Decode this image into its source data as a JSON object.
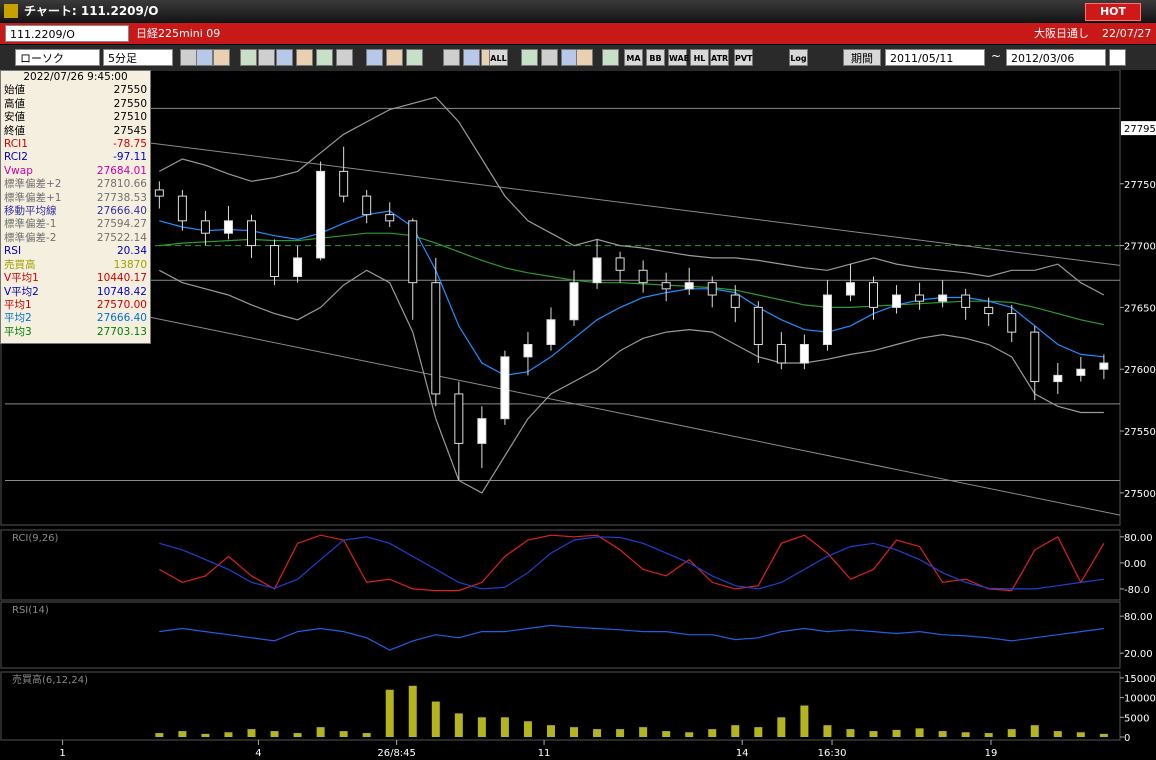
{
  "window": {
    "title": "チャート: 111.2209/O",
    "hot": "HOT"
  },
  "toolbar": {
    "symbol": "111.2209/O",
    "name": "日経225mini 09",
    "market": "大阪日通し",
    "date": "22/07/27",
    "chart_style": "ローソク",
    "interval": "5分足",
    "buttons": [
      "ALL",
      "MA",
      "BB",
      "WAE",
      "HL",
      "ATR",
      "PVT",
      "Log"
    ],
    "period": "期間",
    "from": "2011/05/11",
    "tilde": "~",
    "to": "2012/03/06"
  },
  "info_panel": {
    "datetime": "2022/07/26 9:45:00",
    "rows": [
      {
        "label": "始値",
        "value": "27550",
        "color": "#000000"
      },
      {
        "label": "高値",
        "value": "27550",
        "color": "#000000"
      },
      {
        "label": "安値",
        "value": "27510",
        "color": "#000000"
      },
      {
        "label": "終値",
        "value": "27545",
        "color": "#000000"
      },
      {
        "label": "RCI1",
        "value": "-78.75",
        "color": "#d00000"
      },
      {
        "label": "RCI2",
        "value": "-97.11",
        "color": "#0000c0"
      },
      {
        "label": "Vwap",
        "value": "27684.01",
        "color": "#d000a0"
      },
      {
        "label": "標準偏差+2",
        "value": "27810.66",
        "color": "#707070"
      },
      {
        "label": "標準偏差+1",
        "value": "27738.53",
        "color": "#707070"
      },
      {
        "label": "移動平均線",
        "value": "27666.40",
        "color": "#3030a0"
      },
      {
        "label": "標準偏差-1",
        "value": "27594.27",
        "color": "#707070"
      },
      {
        "label": "標準偏差-2",
        "value": "27522.14",
        "color": "#707070"
      },
      {
        "label": "RSI",
        "value": "20.34",
        "color": "#0000c0"
      },
      {
        "label": "売買高",
        "value": "13870",
        "color": "#a0a000"
      },
      {
        "label": "V平均1",
        "value": "10440.17",
        "color": "#d00000"
      },
      {
        "label": "V平均2",
        "value": "10748.42",
        "color": "#0000c0"
      },
      {
        "label": "平均1",
        "value": "27570.00",
        "color": "#d00000"
      },
      {
        "label": "平均2",
        "value": "27666.40",
        "color": "#0070d0"
      },
      {
        "label": "平均3",
        "value": "27703.13",
        "color": "#008000"
      }
    ]
  },
  "chart_data": [
    {
      "type": "candlestick",
      "x": [
        0,
        1,
        2,
        3,
        4,
        5,
        6,
        7,
        8,
        9,
        10,
        11,
        12,
        13,
        14,
        15,
        16,
        17,
        18,
        19,
        20,
        21,
        22,
        23,
        24,
        25,
        26,
        27,
        28,
        29,
        30,
        31,
        32,
        33,
        34,
        35,
        36,
        37,
        38,
        39,
        40,
        41
      ],
      "open": [
        27745,
        27740,
        27720,
        27710,
        27720,
        27700,
        27675,
        27690,
        27760,
        27740,
        27725,
        27720,
        27670,
        27580,
        27540,
        27560,
        27610,
        27620,
        27640,
        27670,
        27690,
        27680,
        27670,
        27665,
        27670,
        27660,
        27650,
        27620,
        27605,
        27620,
        27660,
        27670,
        27650,
        27660,
        27655,
        27660,
        27650,
        27645,
        27630,
        27590,
        27595,
        27600
      ],
      "high": [
        27752,
        27745,
        27728,
        27732,
        27725,
        27705,
        27700,
        27768,
        27780,
        27745,
        27735,
        27722,
        27690,
        27590,
        27570,
        27615,
        27630,
        27650,
        27680,
        27705,
        27695,
        27688,
        27678,
        27682,
        27675,
        27668,
        27655,
        27630,
        27628,
        27672,
        27685,
        27675,
        27668,
        27670,
        27672,
        27665,
        27658,
        27652,
        27635,
        27605,
        27610,
        27612
      ],
      "low": [
        27730,
        27712,
        27700,
        27705,
        27690,
        27668,
        27670,
        27688,
        27735,
        27718,
        27715,
        27640,
        27570,
        27510,
        27520,
        27555,
        27595,
        27615,
        27635,
        27665,
        27670,
        27662,
        27655,
        27660,
        27650,
        27638,
        27605,
        27600,
        27600,
        27615,
        27655,
        27640,
        27645,
        27648,
        27650,
        27640,
        27635,
        27622,
        27575,
        27580,
        27590,
        27592
      ],
      "close": [
        27740,
        27720,
        27710,
        27720,
        27700,
        27675,
        27690,
        27760,
        27740,
        27725,
        27720,
        27670,
        27580,
        27540,
        27560,
        27610,
        27620,
        27640,
        27670,
        27690,
        27680,
        27670,
        27665,
        27670,
        27660,
        27650,
        27620,
        27605,
        27620,
        27660,
        27670,
        27650,
        27660,
        27655,
        27660,
        27650,
        27645,
        27630,
        27590,
        27595,
        27600,
        27605
      ],
      "overlays": [
        {
          "color": "#9a9a9a",
          "values": [
            27760,
            27770,
            27765,
            27758,
            27752,
            27755,
            27760,
            27775,
            27790,
            27800,
            27810,
            27815,
            27820,
            27800,
            27770,
            27740,
            27720,
            27710,
            27700,
            27705,
            27700,
            27698,
            27695,
            27692,
            27690,
            27690,
            27688,
            27685,
            27682,
            27680,
            27685,
            27690,
            27685,
            27682,
            27680,
            27678,
            27675,
            27680,
            27680,
            27685,
            27670,
            27660
          ]
        },
        {
          "color": "#9a9a9a",
          "values": [
            27680,
            27670,
            27665,
            27660,
            27652,
            27645,
            27640,
            27650,
            27668,
            27680,
            27670,
            27630,
            27560,
            27510,
            27500,
            27530,
            27560,
            27580,
            27590,
            27600,
            27615,
            27625,
            27630,
            27632,
            27630,
            27620,
            27610,
            27605,
            27605,
            27608,
            27612,
            27615,
            27620,
            27625,
            27628,
            27625,
            27620,
            27610,
            27580,
            27570,
            27565,
            27565
          ]
        },
        {
          "color": "#2e9a2e",
          "values": [
            27700,
            27702,
            27703,
            27704,
            27705,
            27704,
            27704,
            27706,
            27708,
            27710,
            27710,
            27708,
            27702,
            27695,
            27688,
            27682,
            27678,
            27675,
            27672,
            27670,
            27670,
            27669,
            27668,
            27667,
            27666,
            27664,
            27660,
            27656,
            27652,
            27650,
            27650,
            27651,
            27652,
            27653,
            27654,
            27655,
            27655,
            27654,
            27650,
            27645,
            27640,
            27636
          ]
        },
        {
          "color": "#1e90ff",
          "values": [
            27720,
            27715,
            27712,
            27713,
            27712,
            27708,
            27705,
            27710,
            27718,
            27725,
            27728,
            27715,
            27680,
            27635,
            27605,
            27595,
            27598,
            27610,
            27625,
            27640,
            27650,
            27658,
            27662,
            27665,
            27665,
            27662,
            27650,
            27640,
            27632,
            27630,
            27635,
            27645,
            27652,
            27656,
            27658,
            27658,
            27655,
            27650,
            27635,
            27620,
            27612,
            27610
          ]
        }
      ],
      "trendlines": [
        {
          "color": "#8a8a8a",
          "x": [
            -0.4,
            41.7
          ],
          "y": [
            27783,
            27684
          ]
        },
        {
          "color": "#8a8a8a",
          "x": [
            -0.4,
            41.7
          ],
          "y": [
            27642,
            27482
          ]
        }
      ],
      "hlines": [
        {
          "value": 27700,
          "color": "#2e9a2e",
          "dashed": true
        },
        {
          "value": 27811,
          "color": "#8a8a8a",
          "dashed": false
        },
        {
          "value": 27672,
          "color": "#8a8a8a",
          "dashed": false
        },
        {
          "value": 27572,
          "color": "#8a8a8a",
          "dashed": false
        },
        {
          "value": 27510,
          "color": "#8a8a8a",
          "dashed": false
        }
      ],
      "last_price": 27795,
      "xlim": [
        -6.7,
        41.7
      ],
      "ylim": [
        27474,
        27842
      ],
      "yticks": [
        27750,
        27700,
        27650,
        27600,
        27550,
        27500
      ]
    },
    {
      "type": "line",
      "title": "RCI(9,26)",
      "x": [
        0,
        1,
        2,
        3,
        4,
        5,
        6,
        7,
        8,
        9,
        10,
        11,
        12,
        13,
        14,
        15,
        16,
        17,
        18,
        19,
        20,
        21,
        22,
        23,
        24,
        25,
        26,
        27,
        28,
        29,
        30,
        31,
        32,
        33,
        34,
        35,
        36,
        37,
        38,
        39,
        40,
        41
      ],
      "series": [
        {
          "color": "#e02020",
          "values": [
            -20,
            -60,
            -40,
            20,
            -40,
            -80,
            60,
            85,
            70,
            -60,
            -50,
            -80,
            -85,
            -85,
            -60,
            20,
            70,
            85,
            80,
            85,
            40,
            -20,
            -40,
            10,
            -60,
            -80,
            -70,
            60,
            85,
            30,
            -50,
            -20,
            70,
            50,
            -60,
            -50,
            -80,
            -85,
            40,
            80,
            -60,
            60
          ]
        },
        {
          "color": "#2040d0",
          "values": [
            60,
            40,
            10,
            -20,
            -60,
            -78,
            -50,
            10,
            70,
            80,
            60,
            20,
            -20,
            -60,
            -80,
            -75,
            -30,
            30,
            70,
            80,
            78,
            60,
            30,
            0,
            -40,
            -70,
            -80,
            -60,
            -20,
            20,
            50,
            60,
            40,
            10,
            -30,
            -60,
            -78,
            -80,
            -80,
            -70,
            -60,
            -50
          ]
        }
      ],
      "xlim": [
        -6.7,
        41.7
      ],
      "ylim": [
        -114,
        101
      ],
      "yticks": [
        {
          "value": 80,
          "label": "80.00"
        },
        {
          "value": 0,
          "label": "0.00"
        },
        {
          "value": -80,
          "label": "-80.0"
        }
      ]
    },
    {
      "type": "line",
      "title": "RSI(14)",
      "x": [
        0,
        1,
        2,
        3,
        4,
        5,
        6,
        7,
        8,
        9,
        10,
        11,
        12,
        13,
        14,
        15,
        16,
        17,
        18,
        19,
        20,
        21,
        22,
        23,
        24,
        25,
        26,
        27,
        28,
        29,
        30,
        31,
        32,
        33,
        34,
        35,
        36,
        37,
        38,
        39,
        40,
        41
      ],
      "series": [
        {
          "color": "#2060e0",
          "values": [
            55,
            60,
            55,
            50,
            45,
            40,
            55,
            60,
            55,
            45,
            25,
            40,
            50,
            45,
            55,
            55,
            60,
            65,
            62,
            60,
            58,
            55,
            55,
            50,
            50,
            42,
            45,
            55,
            60,
            55,
            58,
            55,
            52,
            55,
            50,
            48,
            45,
            40,
            45,
            50,
            55,
            60
          ]
        }
      ],
      "xlim": [
        -6.7,
        41.7
      ],
      "ylim": [
        -4,
        103
      ],
      "yticks": [
        {
          "value": 80,
          "label": "80.00"
        },
        {
          "value": 20,
          "label": "20.00"
        }
      ]
    },
    {
      "type": "bar",
      "title": "売買高(6,12,24)",
      "color": "#b4b41e",
      "x": [
        0,
        1,
        2,
        3,
        4,
        5,
        6,
        7,
        8,
        9,
        10,
        11,
        12,
        13,
        14,
        15,
        16,
        17,
        18,
        19,
        20,
        21,
        22,
        23,
        24,
        25,
        26,
        27,
        28,
        29,
        30,
        31,
        32,
        33,
        34,
        35,
        36,
        37,
        38,
        39,
        40,
        41
      ],
      "values": [
        1000,
        1500,
        800,
        1200,
        2000,
        1500,
        1000,
        2500,
        1500,
        1000,
        12000,
        13000,
        9000,
        6000,
        5000,
        5000,
        4000,
        3000,
        2500,
        2000,
        2000,
        2500,
        1500,
        1200,
        2000,
        3000,
        2500,
        5000,
        8000,
        3000,
        2000,
        1500,
        1800,
        2200,
        1500,
        1200,
        1000,
        2000,
        3000,
        1500,
        1200,
        800
      ],
      "xlim": [
        -6.7,
        41.7
      ],
      "ylim": [
        -760,
        16500
      ],
      "yticks": [
        15000,
        10000,
        5000,
        0
      ],
      "xticks": [
        {
          "value": -4.2,
          "label": "1"
        },
        {
          "value": 4.3,
          "label": "4"
        },
        {
          "value": 10.3,
          "label": "26/8:45"
        },
        {
          "value": 16.7,
          "label": "11"
        },
        {
          "value": 25.3,
          "label": "14"
        },
        {
          "value": 29.2,
          "label": "16:30"
        },
        {
          "value": 36.1,
          "label": "19"
        }
      ]
    }
  ]
}
